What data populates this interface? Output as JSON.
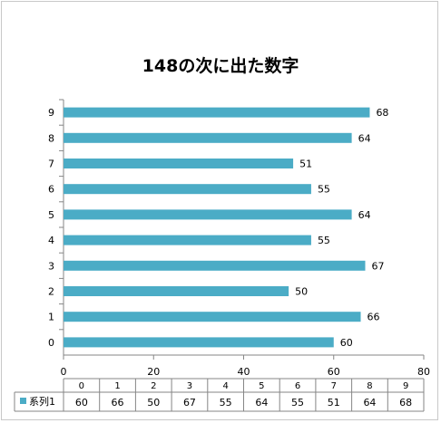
{
  "chart_data": {
    "type": "bar",
    "orientation": "horizontal",
    "title": "148の次に出た数字",
    "categories": [
      "0",
      "1",
      "2",
      "3",
      "4",
      "5",
      "6",
      "7",
      "8",
      "9"
    ],
    "series": [
      {
        "name": "系列1",
        "values": [
          60,
          66,
          50,
          67,
          55,
          64,
          55,
          51,
          64,
          68
        ],
        "color": "#4bacc6"
      }
    ],
    "xlim": [
      0,
      80
    ],
    "x_ticks": [
      0,
      20,
      40,
      60,
      80
    ],
    "data_labels": true,
    "data_table": true,
    "grid": false
  }
}
